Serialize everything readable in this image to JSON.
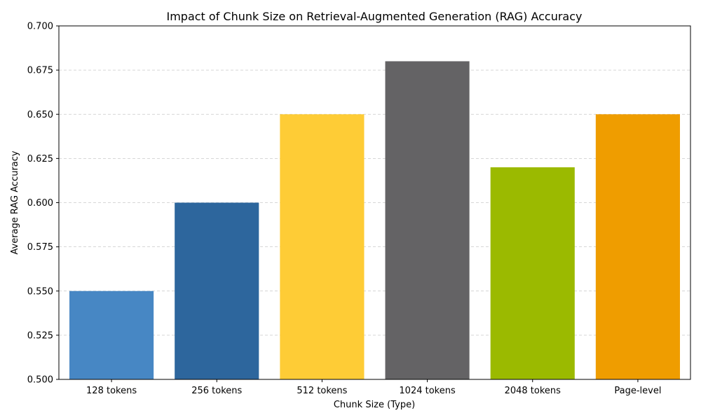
{
  "chart_data": {
    "type": "bar",
    "title": "Impact of Chunk Size on Retrieval-Augmented Generation (RAG) Accuracy",
    "xlabel": "Chunk Size (Type)",
    "ylabel": "Average RAG Accuracy",
    "categories": [
      "128 tokens",
      "256 tokens",
      "512 tokens",
      "1024 tokens",
      "2048 tokens",
      "Page-level"
    ],
    "values": [
      0.55,
      0.6,
      0.65,
      0.68,
      0.62,
      0.65
    ],
    "colors": [
      "#4787c4",
      "#2d669d",
      "#fecc36",
      "#646365",
      "#9bba00",
      "#ef9d00"
    ],
    "ylim": [
      0.5,
      0.7
    ],
    "yticks": [
      "0.500",
      "0.525",
      "0.550",
      "0.575",
      "0.600",
      "0.625",
      "0.650",
      "0.675",
      "0.700"
    ],
    "grid": "y-dashed",
    "legend": "none"
  }
}
